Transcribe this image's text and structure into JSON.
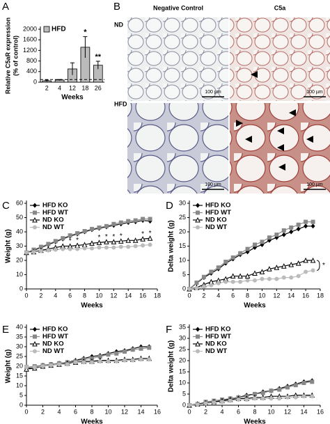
{
  "panel_labels": [
    "A",
    "B",
    "C",
    "D",
    "E",
    "F"
  ],
  "histology": {
    "columns": [
      "Negative Control",
      "C5a"
    ],
    "rows": [
      "ND",
      "HFD"
    ],
    "scale_bar": "100 µm"
  },
  "chart_data": [
    {
      "type": "bar",
      "ylabel": [
        "Relative C5aR expression",
        "(% of control)"
      ],
      "xlabel": "Weeks",
      "categories": [
        "2",
        "4",
        "12",
        "18",
        "26"
      ],
      "series": [
        {
          "name": "HFD",
          "color": "#bbbbbb",
          "values": [
            50,
            80,
            500,
            1320,
            640
          ],
          "errors": [
            30,
            20,
            230,
            400,
            150
          ]
        }
      ],
      "ylim": [
        0,
        2000
      ],
      "yticks": [
        0,
        400,
        800,
        1200,
        1600,
        2000
      ],
      "reference_line": 100,
      "legend": "upper left",
      "annotations": [
        {
          "text": "*",
          "x": "18"
        },
        {
          "text": "**",
          "x": "26"
        }
      ]
    },
    {
      "type": "line",
      "ylabel": "Weight (g)",
      "xlabel": "Weeks",
      "legend": "upper left",
      "x": [
        0,
        1,
        2,
        3,
        4,
        5,
        6,
        7,
        8,
        9,
        10,
        11,
        12,
        13,
        14,
        15,
        16,
        17
      ],
      "xlim": [
        0,
        18
      ],
      "xticks": [
        0,
        2,
        4,
        6,
        8,
        10,
        12,
        14,
        16,
        18
      ],
      "ylim": [
        0,
        60
      ],
      "yticks": [
        0,
        10,
        20,
        30,
        40,
        50,
        60
      ],
      "series": [
        {
          "name": "HFD KO",
          "color": "#000000",
          "marker": "diamond",
          "values": [
            25.5,
            27,
            29,
            31,
            33,
            35,
            37,
            38.5,
            40,
            41.5,
            42.5,
            43.5,
            44.5,
            45.5,
            46.5,
            47,
            48,
            47.5
          ]
        },
        {
          "name": "HFD WT",
          "color": "#888888",
          "marker": "square",
          "values": [
            25.5,
            27.5,
            29.5,
            31.5,
            33.5,
            35.5,
            37.5,
            39,
            40.5,
            42,
            43,
            44,
            45.5,
            46.5,
            47.5,
            48,
            49,
            49
          ]
        },
        {
          "name": "ND KO",
          "color": "#000000",
          "marker": "triangle-open",
          "values": [
            25.5,
            26,
            27,
            28,
            29,
            30,
            30,
            30.5,
            31,
            32,
            32.5,
            33,
            33,
            33.5,
            34,
            34,
            35,
            35.5
          ]
        },
        {
          "name": "ND WT",
          "color": "#bbbbbb",
          "marker": "circle",
          "values": [
            25.5,
            25.8,
            26.5,
            27,
            27.5,
            28,
            28,
            28,
            28.5,
            28.5,
            29,
            29,
            29,
            29.5,
            29.5,
            30,
            30.5,
            31
          ]
        }
      ],
      "annotations": [
        {
          "text": "*",
          "x": 6
        },
        {
          "text": "*",
          "x": 7
        },
        {
          "text": "*",
          "x": 10
        },
        {
          "text": "*",
          "x": 11
        },
        {
          "text": "*",
          "x": 12
        },
        {
          "text": "*",
          "x": 13
        },
        {
          "text": "*",
          "x": 16
        },
        {
          "text": "*",
          "x": 17
        }
      ]
    },
    {
      "type": "line",
      "ylabel": "Delta weight (g)",
      "xlabel": "Weeks",
      "legend": "upper left",
      "x": [
        0,
        1,
        2,
        3,
        4,
        5,
        6,
        7,
        8,
        9,
        10,
        11,
        12,
        13,
        14,
        15,
        16,
        17
      ],
      "xlim": [
        0,
        18
      ],
      "xticks": [
        0,
        2,
        4,
        6,
        8,
        10,
        12,
        14,
        16,
        18
      ],
      "ylim": [
        0,
        30
      ],
      "yticks": [
        0,
        5,
        10,
        15,
        20,
        25,
        30
      ],
      "series": [
        {
          "name": "HFD KO",
          "color": "#000000",
          "marker": "diamond",
          "values": [
            0,
            2,
            4,
            5.5,
            7,
            9,
            10.5,
            12,
            13,
            14.5,
            15.5,
            17,
            18,
            19,
            20,
            21,
            22,
            22
          ]
        },
        {
          "name": "HFD WT",
          "color": "#888888",
          "marker": "square",
          "values": [
            0,
            2.2,
            4.2,
            6,
            7.5,
            9.5,
            11,
            12.5,
            14,
            15.5,
            16.5,
            18,
            19,
            20.5,
            21.5,
            22.5,
            23.5,
            23.5
          ]
        },
        {
          "name": "ND KO",
          "color": "#000000",
          "marker": "triangle-open",
          "values": [
            0,
            0.5,
            1.5,
            2.5,
            3,
            3.5,
            4.5,
            4.5,
            4.5,
            5.5,
            6,
            7,
            7.5,
            8,
            8.5,
            9,
            10,
            10
          ]
        },
        {
          "name": "ND WT",
          "color": "#bbbbbb",
          "marker": "circle",
          "values": [
            0,
            0.3,
            0.8,
            1.3,
            2,
            2.5,
            2.5,
            2.5,
            3,
            3,
            3.5,
            3.5,
            3.5,
            4,
            4,
            4.5,
            6,
            6.5
          ]
        }
      ],
      "significance_bracket": {
        "label": "*",
        "series": [
          "ND KO",
          "ND WT"
        ]
      }
    },
    {
      "type": "line",
      "ylabel": "Weight (g)",
      "xlabel": "Weeks",
      "legend": "upper left",
      "x": [
        0,
        1,
        2,
        3,
        4,
        5,
        6,
        7,
        8,
        9,
        10,
        11,
        12,
        13,
        14,
        15
      ],
      "xlim": [
        0,
        16
      ],
      "xticks": [
        0,
        2,
        4,
        6,
        8,
        10,
        12,
        14,
        16
      ],
      "ylim": [
        0,
        40
      ],
      "yticks": [
        0,
        5,
        10,
        15,
        20,
        25,
        30,
        35,
        40
      ],
      "series": [
        {
          "name": "HFD KO",
          "color": "#000000",
          "marker": "diamond",
          "values": [
            19,
            19.5,
            20.5,
            21,
            21.5,
            22,
            23,
            24,
            25,
            25.5,
            26.5,
            27.5,
            28,
            29,
            30,
            30
          ]
        },
        {
          "name": "HFD WT",
          "color": "#888888",
          "marker": "square",
          "values": [
            19.5,
            20,
            20.5,
            21,
            21.5,
            22,
            22.5,
            23.5,
            24,
            25,
            26,
            26.5,
            27.5,
            28.5,
            29,
            29.5
          ]
        },
        {
          "name": "ND KO",
          "color": "#000000",
          "marker": "triangle-open",
          "values": [
            18.5,
            19,
            20,
            20.5,
            21,
            21.5,
            22,
            22.5,
            22.5,
            23,
            23,
            23,
            23.5,
            23.5,
            24,
            24
          ]
        },
        {
          "name": "ND WT",
          "color": "#bbbbbb",
          "marker": "circle",
          "values": [
            19.5,
            19.5,
            20,
            20.5,
            21,
            21,
            22,
            22,
            22,
            22.5,
            22.5,
            22.5,
            23,
            23,
            23.5,
            23.5
          ]
        }
      ]
    },
    {
      "type": "line",
      "ylabel": "Delta weight (g)",
      "xlabel": "Weeks",
      "legend": "upper left",
      "x": [
        0,
        1,
        2,
        3,
        4,
        5,
        6,
        7,
        8,
        9,
        10,
        11,
        12,
        13,
        14,
        15
      ],
      "xlim": [
        0,
        16
      ],
      "xticks": [
        0,
        2,
        4,
        6,
        8,
        10,
        12,
        14,
        16
      ],
      "ylim": [
        0,
        35
      ],
      "yticks": [
        0,
        5,
        10,
        15,
        20,
        25,
        30,
        35
      ],
      "series": [
        {
          "name": "HFD KO",
          "color": "#000000",
          "marker": "diamond",
          "values": [
            0,
            0.5,
            1,
            1.5,
            2,
            3,
            3.5,
            4.5,
            5,
            6,
            6.5,
            7.5,
            8.5,
            9.5,
            10.5,
            11
          ]
        },
        {
          "name": "HFD WT",
          "color": "#888888",
          "marker": "square",
          "values": [
            0,
            0.5,
            1.5,
            2,
            2.5,
            3,
            3.5,
            4,
            5,
            5.5,
            6.5,
            7,
            8,
            9,
            10,
            10.5
          ]
        },
        {
          "name": "ND KO",
          "color": "#000000",
          "marker": "triangle-open",
          "values": [
            0,
            0.5,
            1,
            1.5,
            2,
            2.5,
            3,
            3,
            3.5,
            3.5,
            4,
            4,
            4,
            4.5,
            4.5,
            4.5
          ]
        },
        {
          "name": "ND WT",
          "color": "#bbbbbb",
          "marker": "circle",
          "values": [
            0,
            0.3,
            0.8,
            1.2,
            1.5,
            2,
            2.5,
            2.5,
            3,
            3,
            3,
            3,
            3.5,
            3.5,
            4,
            4
          ]
        }
      ]
    }
  ]
}
